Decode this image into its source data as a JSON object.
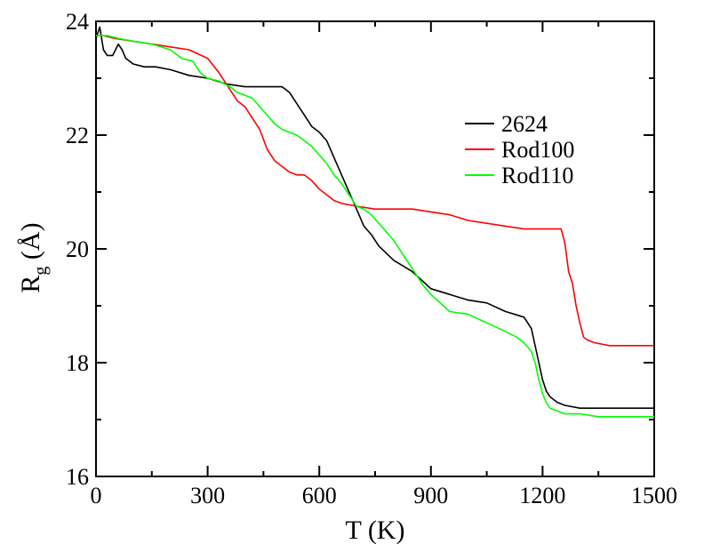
{
  "chart_data": {
    "type": "line",
    "title": "",
    "xlabel": "T (K)",
    "ylabel_main": "R",
    "ylabel_sub": "g",
    "ylabel_unit": " (Å)",
    "xlim": [
      0,
      1500
    ],
    "ylim": [
      16,
      24
    ],
    "xticks": [
      0,
      300,
      600,
      900,
      1200,
      1500
    ],
    "yticks": [
      16,
      18,
      20,
      22,
      24
    ],
    "xtick_labels": [
      "0",
      "300",
      "600",
      "900",
      "1200",
      "1500"
    ],
    "ytick_labels": [
      "16",
      "18",
      "20",
      "22",
      "24"
    ],
    "grid": false,
    "legend_position": "upper-right",
    "series": [
      {
        "name": "2624",
        "color": "#000000",
        "x": [
          0,
          10,
          20,
          30,
          45,
          60,
          70,
          80,
          100,
          130,
          160,
          200,
          250,
          300,
          350,
          400,
          450,
          500,
          520,
          540,
          560,
          580,
          600,
          620,
          640,
          660,
          680,
          700,
          720,
          740,
          760,
          800,
          850,
          900,
          950,
          1000,
          1050,
          1100,
          1150,
          1170,
          1180,
          1190,
          1200,
          1210,
          1220,
          1240,
          1260,
          1300,
          1350,
          1400,
          1450,
          1500
        ],
        "y": [
          23.7,
          23.9,
          23.5,
          23.4,
          23.4,
          23.6,
          23.5,
          23.35,
          23.25,
          23.2,
          23.2,
          23.15,
          23.05,
          23.0,
          22.9,
          22.85,
          22.85,
          22.85,
          22.75,
          22.55,
          22.35,
          22.15,
          22.05,
          21.9,
          21.6,
          21.3,
          21.0,
          20.7,
          20.4,
          20.25,
          20.05,
          19.8,
          19.6,
          19.3,
          19.2,
          19.1,
          19.05,
          18.9,
          18.8,
          18.6,
          18.3,
          18.0,
          17.7,
          17.5,
          17.4,
          17.3,
          17.25,
          17.2,
          17.2,
          17.2,
          17.2,
          17.2
        ]
      },
      {
        "name": "Rod100",
        "color": "#ff0000",
        "x": [
          0,
          20,
          50,
          100,
          150,
          200,
          250,
          300,
          330,
          360,
          380,
          400,
          420,
          440,
          460,
          480,
          500,
          520,
          540,
          560,
          580,
          600,
          620,
          640,
          660,
          700,
          750,
          800,
          850,
          900,
          950,
          1000,
          1050,
          1100,
          1150,
          1200,
          1230,
          1250,
          1260,
          1270,
          1280,
          1290,
          1300,
          1310,
          1320,
          1340,
          1380,
          1420,
          1460,
          1500
        ],
        "y": [
          23.75,
          23.75,
          23.7,
          23.65,
          23.6,
          23.55,
          23.5,
          23.35,
          23.1,
          22.8,
          22.6,
          22.5,
          22.3,
          22.1,
          21.75,
          21.55,
          21.45,
          21.35,
          21.3,
          21.3,
          21.2,
          21.05,
          20.95,
          20.85,
          20.8,
          20.75,
          20.7,
          20.7,
          20.7,
          20.65,
          20.6,
          20.5,
          20.45,
          20.4,
          20.35,
          20.35,
          20.35,
          20.35,
          20.1,
          19.6,
          19.4,
          19.0,
          18.7,
          18.45,
          18.4,
          18.35,
          18.3,
          18.3,
          18.3,
          18.3
        ]
      },
      {
        "name": "Rod110",
        "color": "#00ff00",
        "x": [
          0,
          30,
          60,
          100,
          150,
          200,
          230,
          260,
          280,
          300,
          330,
          360,
          380,
          400,
          420,
          440,
          460,
          480,
          500,
          520,
          540,
          560,
          580,
          600,
          620,
          640,
          660,
          680,
          700,
          720,
          740,
          760,
          780,
          800,
          820,
          840,
          860,
          880,
          900,
          950,
          1000,
          1050,
          1100,
          1130,
          1150,
          1170,
          1180,
          1190,
          1200,
          1210,
          1220,
          1240,
          1260,
          1300,
          1350,
          1400,
          1450,
          1500
        ],
        "y": [
          23.75,
          23.75,
          23.7,
          23.65,
          23.6,
          23.5,
          23.35,
          23.3,
          23.1,
          23.0,
          22.95,
          22.85,
          22.75,
          22.7,
          22.65,
          22.5,
          22.35,
          22.2,
          22.1,
          22.05,
          22.0,
          21.9,
          21.8,
          21.65,
          21.5,
          21.3,
          21.15,
          20.95,
          20.75,
          20.7,
          20.6,
          20.45,
          20.3,
          20.15,
          19.95,
          19.75,
          19.55,
          19.35,
          19.2,
          18.9,
          18.85,
          18.7,
          18.55,
          18.45,
          18.35,
          18.2,
          18.0,
          17.7,
          17.45,
          17.3,
          17.2,
          17.15,
          17.1,
          17.1,
          17.05,
          17.05,
          17.05,
          17.05
        ]
      }
    ]
  }
}
